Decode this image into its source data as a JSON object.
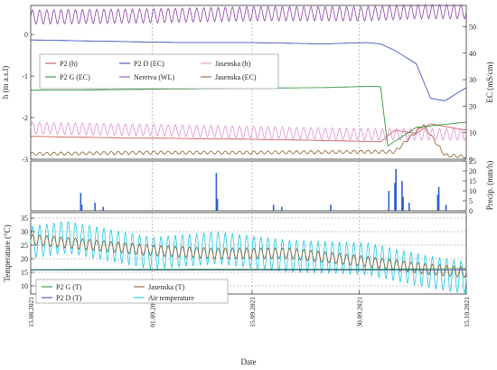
{
  "chart_data": [
    {
      "type": "line",
      "panel": "top",
      "ylabel": "h (m a.s.l)",
      "ylabel_right": "EC (mS/cm)",
      "ylim": [
        -3,
        0.7
      ],
      "ylim_right": [
        0,
        58
      ],
      "yticks": [
        0,
        -1,
        -2,
        -3
      ],
      "yticks_right": [
        0,
        10,
        20,
        30,
        40,
        50
      ],
      "legend_position": "upper-left",
      "series": [
        {
          "name": "P2 (h)",
          "color": "#c84848",
          "axis": "left",
          "x": [
            "2021-08-15",
            "2021-08-25",
            "2021-09-05",
            "2021-09-15",
            "2021-09-25",
            "2021-10-03",
            "2021-10-05",
            "2021-10-08",
            "2021-10-10",
            "2021-10-15"
          ],
          "y": [
            -2.45,
            -2.48,
            -2.5,
            -2.52,
            -2.55,
            -2.58,
            -2.3,
            -2.38,
            -2.15,
            -2.3
          ]
        },
        {
          "name": "P2 D (EC)",
          "color": "#2b3fb5",
          "axis": "right",
          "x": [
            "2021-08-15",
            "2021-08-25",
            "2021-09-05",
            "2021-09-15",
            "2021-09-25",
            "2021-10-01",
            "2021-10-03",
            "2021-10-05",
            "2021-10-08",
            "2021-10-10",
            "2021-10-12",
            "2021-10-15"
          ],
          "y": [
            45,
            44.5,
            44,
            44,
            43.5,
            44,
            43.5,
            41,
            36,
            23,
            22,
            27
          ]
        },
        {
          "name": "Jasenska (h)",
          "color": "#e090d0",
          "axis": "left",
          "oscillation": 0.14,
          "x": [
            "2021-08-15",
            "2021-09-01",
            "2021-09-15",
            "2021-10-01",
            "2021-10-15"
          ],
          "y": [
            -2.25,
            -2.3,
            -2.35,
            -2.4,
            -2.4
          ]
        },
        {
          "name": "P2 G (EC)",
          "color": "#1f8a2a",
          "axis": "right",
          "x": [
            "2021-08-15",
            "2021-08-25",
            "2021-09-05",
            "2021-09-15",
            "2021-09-25",
            "2021-10-02",
            "2021-10-03",
            "2021-10-04",
            "2021-10-08",
            "2021-10-15"
          ],
          "y": [
            26,
            26.2,
            26.5,
            26.8,
            27,
            27.5,
            27.3,
            5,
            12,
            14
          ]
        },
        {
          "name": "Neretva (WL)",
          "color": "#8b3fa8",
          "axis": "left",
          "oscillation": 0.17,
          "x": [
            "2021-08-15",
            "2021-09-01",
            "2021-09-15",
            "2021-10-01",
            "2021-10-08",
            "2021-10-15"
          ],
          "y": [
            0.42,
            0.45,
            0.5,
            0.5,
            0.55,
            0.55
          ]
        },
        {
          "name": "Jasenska (EC)",
          "color": "#8b5a2b",
          "axis": "right",
          "oscillation": 0.6,
          "x": [
            "2021-08-15",
            "2021-09-01",
            "2021-09-15",
            "2021-10-01",
            "2021-10-05",
            "2021-10-09",
            "2021-10-12",
            "2021-10-15"
          ],
          "y": [
            2,
            2.5,
            2.5,
            2.8,
            2.8,
            13,
            1.5,
            1
          ]
        }
      ]
    },
    {
      "type": "bar",
      "panel": "middle",
      "ylabel": "Precip. (mm/h)",
      "ylim": [
        0,
        25
      ],
      "yticks": [
        0,
        5,
        10,
        15,
        20,
        25
      ],
      "color": "#2f5fd0",
      "x": [
        "2021-08-22",
        "2021-08-22",
        "2021-08-24",
        "2021-08-25",
        "2021-09-10",
        "2021-09-10",
        "2021-09-18",
        "2021-09-19",
        "2021-09-26",
        "2021-10-04",
        "2021-10-05",
        "2021-10-05",
        "2021-10-06",
        "2021-10-06",
        "2021-10-07",
        "2021-10-11",
        "2021-10-11",
        "2021-10-12"
      ],
      "values": [
        9,
        3,
        4,
        2,
        19,
        6,
        3,
        2,
        3,
        10,
        14,
        21,
        15,
        7,
        4,
        12,
        8,
        3
      ]
    },
    {
      "type": "line",
      "panel": "bottom",
      "ylabel": "Temperature (°C)",
      "ylim": [
        7,
        37
      ],
      "yticks": [
        10,
        15,
        20,
        25,
        30,
        35
      ],
      "legend_position": "lower-left",
      "series": [
        {
          "name": "P2 G (T)",
          "color": "#1f8a2a",
          "x": [
            "2021-08-15",
            "2021-10-05",
            "2021-10-15"
          ],
          "y": [
            16,
            16.2,
            16.4
          ]
        },
        {
          "name": "P2 D (T)",
          "color": "#2b3fb5",
          "x": [
            "2021-08-15",
            "2021-10-05",
            "2021-10-15"
          ],
          "y": [
            15.8,
            15.8,
            15.9
          ]
        },
        {
          "name": "Jasenska  (T)",
          "color": "#8b5a2b",
          "oscillation": 2,
          "x": [
            "2021-08-15",
            "2021-08-20",
            "2021-09-01",
            "2021-09-10",
            "2021-09-20",
            "2021-10-01",
            "2021-10-10",
            "2021-10-15"
          ],
          "y": [
            27,
            26,
            23,
            22,
            22,
            19,
            16,
            15
          ]
        },
        {
          "name": "Air temperature",
          "color": "#1ec8e6",
          "oscillation": 6,
          "x": [
            "2021-08-15",
            "2021-08-20",
            "2021-09-01",
            "2021-09-10",
            "2021-09-20",
            "2021-10-01",
            "2021-10-10",
            "2021-10-15"
          ],
          "y": [
            26,
            28,
            22,
            24,
            21,
            20,
            15,
            13
          ]
        }
      ]
    },
    {
      "type": "shared-x-axis",
      "xlabel": "Date",
      "xlim": [
        "2021-08-15",
        "2021-10-15"
      ],
      "tick_labels": [
        "15.08.2021",
        "01.09.2021",
        "15.09.2021",
        "30.09.2021",
        "15.10.2021"
      ],
      "tick_dates": [
        "2021-08-15",
        "2021-09-01",
        "2021-09-15",
        "2021-09-30",
        "2021-10-15"
      ],
      "grid": true
    }
  ]
}
